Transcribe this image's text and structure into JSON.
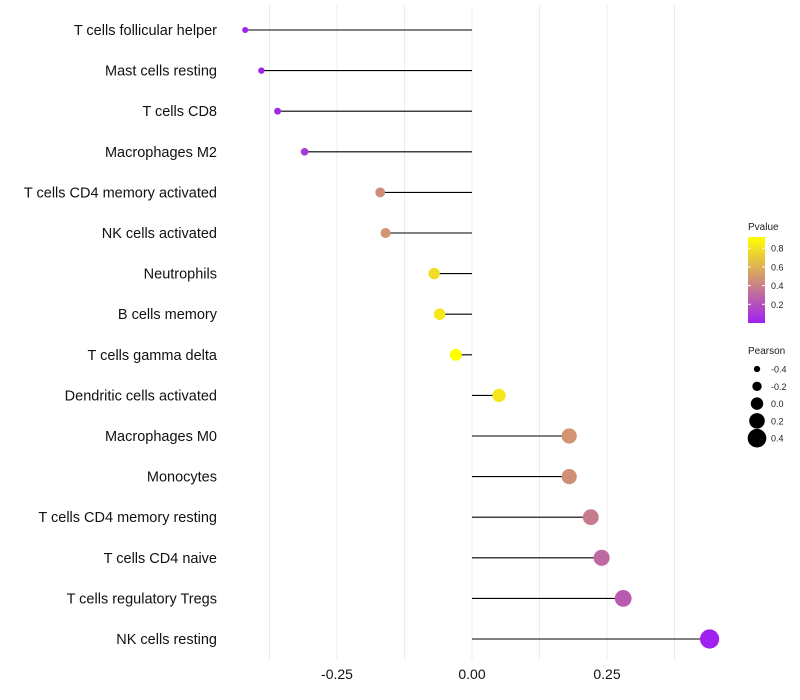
{
  "chart_data": {
    "type": "lollipop",
    "title": "",
    "xlabel": "",
    "ylabel": "",
    "xlim": [
      -0.5,
      0.45
    ],
    "x_ticks": [
      -0.25,
      0.0,
      0.25
    ],
    "x_tick_labels": [
      "-0.25",
      "0.00",
      "0.25"
    ],
    "grid": true,
    "categories": [
      "T cells follicular helper",
      "Mast cells resting",
      "T cells CD8",
      "Macrophages M2",
      "T cells CD4 memory activated",
      "NK cells activated",
      "Neutrophils",
      "B cells memory",
      "T cells gamma delta",
      "Dendritic cells activated",
      "Macrophages M0",
      "Monocytes",
      "T cells CD4 memory resting",
      "T cells CD4 naive",
      "T cells regulatory  Tregs",
      "NK cells resting"
    ],
    "pearson": [
      -0.42,
      -0.39,
      -0.36,
      -0.31,
      -0.17,
      -0.16,
      -0.07,
      -0.06,
      -0.03,
      0.05,
      0.18,
      0.18,
      0.22,
      0.24,
      0.28,
      0.44
    ],
    "pvalue": [
      0.0,
      0.02,
      0.03,
      0.1,
      0.45,
      0.48,
      0.78,
      0.82,
      0.92,
      0.82,
      0.48,
      0.46,
      0.38,
      0.3,
      0.24,
      0.0
    ],
    "legend": {
      "color_title": "Pvalue",
      "color_ticks": [
        0.8,
        0.6,
        0.4,
        0.2
      ],
      "color_tick_labels": [
        "0.8",
        "0.6",
        "0.4",
        "0.2"
      ],
      "color_range": [
        0.0,
        0.92
      ],
      "color_low": "#a020f0",
      "color_high": "#ffff00",
      "size_title": "Pearson",
      "size_values": [
        -0.4,
        -0.2,
        0.0,
        0.2,
        0.4
      ],
      "size_labels": [
        "-0.4",
        "-0.2",
        "0.0",
        "0.2",
        "0.4"
      ],
      "placement": "right"
    }
  }
}
